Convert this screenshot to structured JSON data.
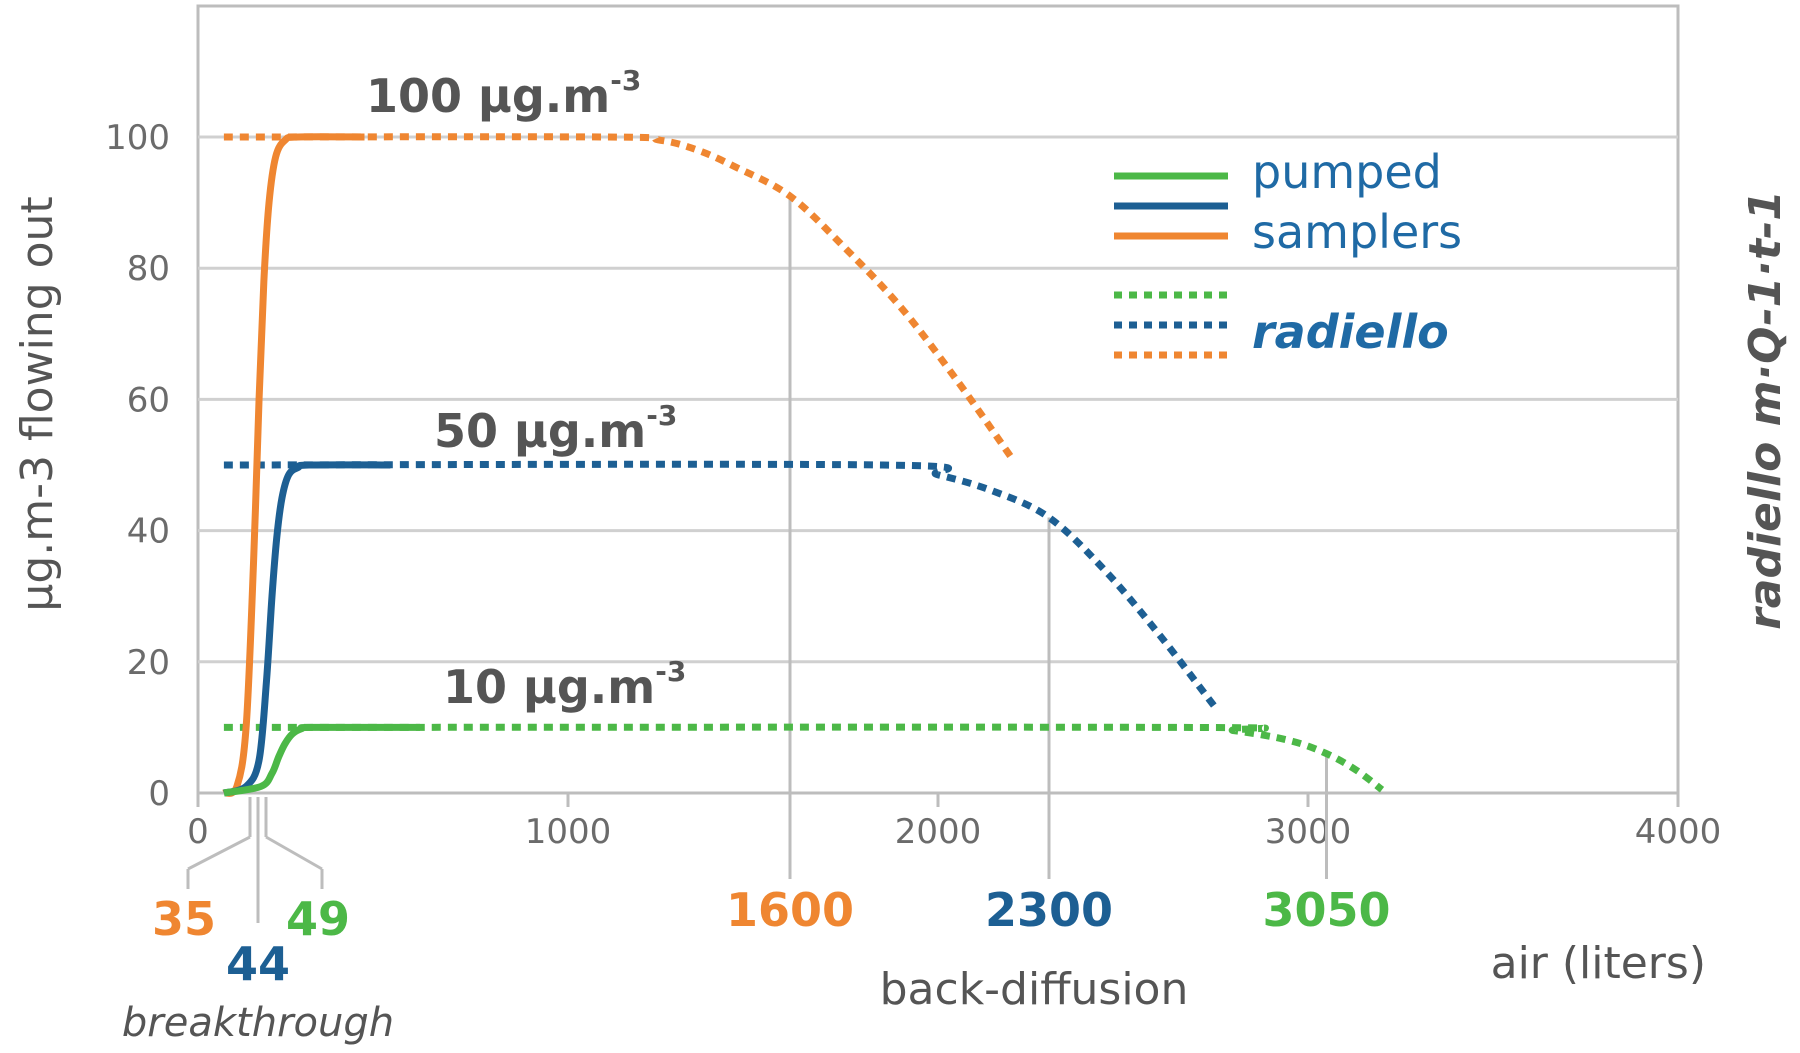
{
  "chart_data": {
    "type": "line",
    "title": "",
    "xlabel": "air (liters)",
    "ylabel": "µg.m-3 flowing out",
    "y2label": "radiello m·Q-1·t-1",
    "xlim": [
      0,
      4000
    ],
    "ylim": [
      0,
      120
    ],
    "xticks": [
      0,
      1000,
      2000,
      3000,
      4000
    ],
    "yticks": [
      0,
      20,
      40,
      60,
      80,
      100
    ],
    "grid": true,
    "colors": {
      "green": "#4cb847",
      "blue": "#1d5f93",
      "orange": "#ef8631",
      "gray": "#bdbdbd",
      "text": "#555555",
      "legend": "#1f6aa5"
    },
    "legend": {
      "position": "top-right",
      "solid_label_1": "pumped",
      "solid_label_2": "samplers",
      "dotted_label": "radiello"
    },
    "concentration_labels": [
      {
        "text": "100 µg.m",
        "sup": "-3",
        "series": "orange"
      },
      {
        "text": "50 µg.m",
        "sup": "-3",
        "series": "blue"
      },
      {
        "text": "10 µg.m",
        "sup": "-3",
        "series": "green"
      }
    ],
    "series": [
      {
        "color": "orange",
        "style": "solid",
        "x": [
          70,
          105,
          130,
          150,
          165,
          178,
          192,
          210,
          235,
          270,
          450
        ],
        "y": [
          0,
          1,
          10,
          35,
          60,
          78,
          90,
          97,
          99.5,
          100,
          100
        ]
      },
      {
        "color": "blue",
        "style": "solid",
        "x": [
          70,
          130,
          165,
          185,
          200,
          213,
          227,
          245,
          270,
          300,
          520
        ],
        "y": [
          0,
          1,
          5,
          17,
          30,
          39,
          45,
          48.5,
          49.6,
          50,
          50
        ]
      },
      {
        "color": "green",
        "style": "solid",
        "x": [
          70,
          170,
          200,
          218,
          235,
          255,
          280,
          310,
          600
        ],
        "y": [
          0,
          1,
          3,
          5.5,
          7.5,
          9,
          9.8,
          10,
          10
        ]
      },
      {
        "color": "orange",
        "style": "dotted",
        "x": [
          70,
          1100,
          1250,
          1350,
          1450,
          1600,
          1750,
          1900,
          2050,
          2200
        ],
        "y": [
          100,
          100,
          99.5,
          98,
          95.5,
          91,
          83,
          74,
          63,
          51
        ]
      },
      {
        "color": "blue",
        "style": "dotted",
        "x": [
          70,
          1850,
          2000,
          2150,
          2300,
          2450,
          2600,
          2750
        ],
        "y": [
          50,
          50,
          48.5,
          46,
          42,
          34,
          24,
          13
        ]
      },
      {
        "color": "green",
        "style": "dotted",
        "x": [
          70,
          2650,
          2800,
          2950,
          3050,
          3130,
          3200
        ],
        "y": [
          10,
          10,
          9.5,
          8,
          6,
          3.5,
          0.5
        ]
      }
    ],
    "markers": [
      {
        "text": "35",
        "x": 35,
        "color": "orange",
        "group": "breakthrough"
      },
      {
        "text": "44",
        "x": 44,
        "color": "blue",
        "group": "breakthrough"
      },
      {
        "text": "49",
        "x": 49,
        "color": "green",
        "group": "breakthrough"
      },
      {
        "text": "1600",
        "x": 1600,
        "y": 91,
        "color": "orange",
        "group": "back-diffusion"
      },
      {
        "text": "2300",
        "x": 2300,
        "y": 42,
        "color": "blue",
        "group": "back-diffusion"
      },
      {
        "text": "3050",
        "x": 3050,
        "y": 6,
        "color": "green",
        "group": "back-diffusion"
      }
    ],
    "annotations": {
      "breakthrough": "breakthrough",
      "back_diffusion": "back-diffusion"
    }
  }
}
